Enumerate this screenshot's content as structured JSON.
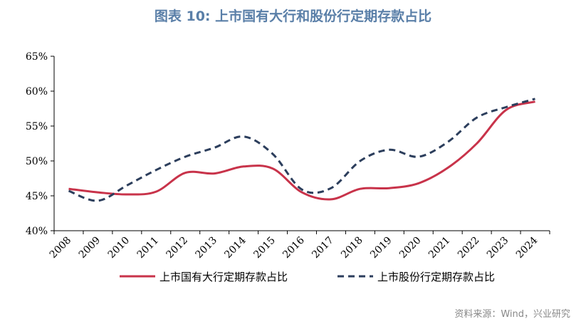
{
  "title": "图表 10: 上市国有大行和股份行定期存款占比",
  "source": "资料来源：Wind，兴业研究",
  "chart_data": {
    "type": "line",
    "title": "图表 10: 上市国有大行和股份行定期存款占比",
    "categories": [
      "2008",
      "2009",
      "2010",
      "2011",
      "2012",
      "2013",
      "2014",
      "2015",
      "2016",
      "2017",
      "2018",
      "2019",
      "2020",
      "2021",
      "2022",
      "2023",
      "2024"
    ],
    "y_ticks": [
      "40%",
      "45%",
      "50%",
      "55%",
      "60%",
      "65%"
    ],
    "ylim": [
      40,
      65
    ],
    "grid": false,
    "legend_position": "bottom",
    "series": [
      {
        "name": "上市国有大行定期存款占比",
        "color": "#c8334a",
        "style": "solid",
        "values": [
          46.0,
          45.5,
          45.2,
          45.6,
          48.3,
          48.2,
          49.2,
          48.9,
          45.5,
          44.5,
          46.0,
          46.1,
          46.8,
          49.0,
          52.5,
          57.3,
          58.5
        ]
      },
      {
        "name": "上市股份行定期存款占比",
        "color": "#2c3e5c",
        "style": "dashed",
        "values": [
          45.7,
          44.3,
          46.5,
          48.7,
          50.6,
          51.9,
          53.5,
          51.0,
          45.9,
          46.1,
          50.0,
          51.6,
          50.6,
          52.7,
          56.2,
          57.7,
          58.9
        ]
      }
    ]
  }
}
